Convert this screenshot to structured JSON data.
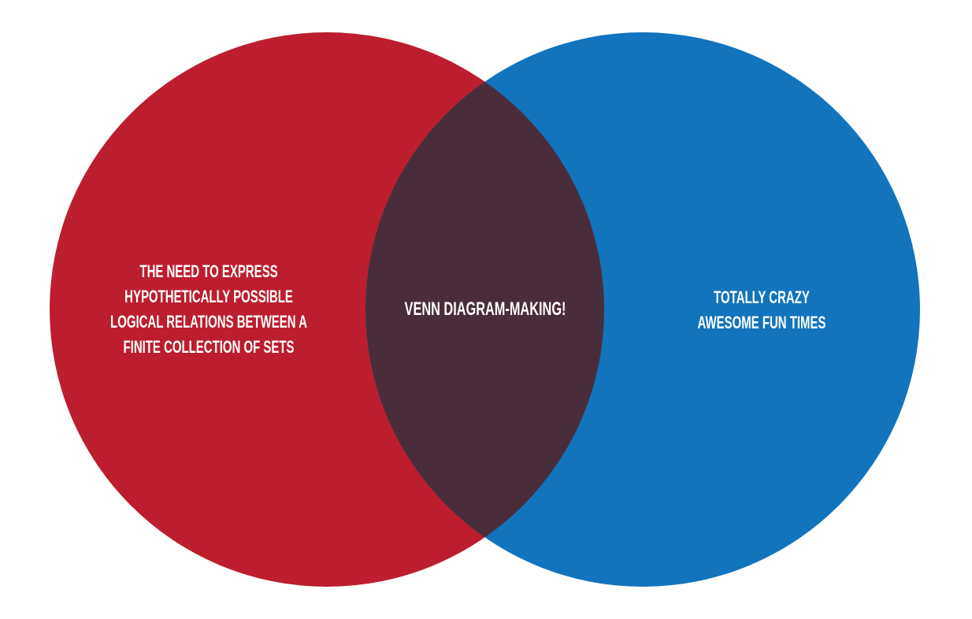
{
  "colors": {
    "left_set": "#BC1E2D",
    "right_set": "#1174BD",
    "intersection": "#4A2D3A",
    "text": "#FFFFFF"
  },
  "sets": {
    "left": {
      "lines": [
        "THE NEED TO EXPRESS",
        "HYPOTHETICALLY POSSIBLE",
        "LOGICAL RELATIONS BETWEEN A",
        "FINITE COLLECTION OF SETS"
      ]
    },
    "right": {
      "lines": [
        "TOTALLY CRAZY",
        "AWESOME FUN TIMES"
      ]
    },
    "intersection": {
      "lines": [
        "VENN DIAGRAM-MAKING!"
      ]
    }
  }
}
